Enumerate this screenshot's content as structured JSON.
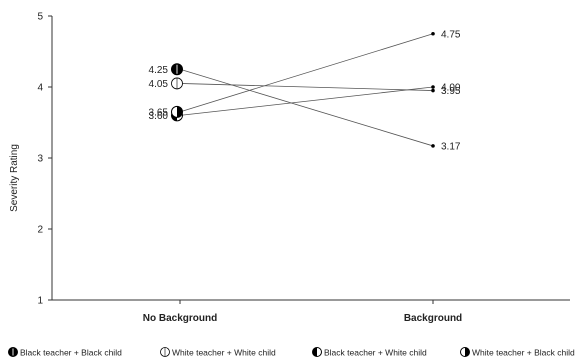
{
  "chart_data": {
    "type": "line",
    "title": "",
    "xlabel": "",
    "ylabel": "Severity Rating",
    "ylim": [
      1,
      5
    ],
    "yticks": [
      1,
      2,
      3,
      4,
      5
    ],
    "categories": [
      "No Background",
      "Background"
    ],
    "grid": false,
    "legend_position": "bottom",
    "series": [
      {
        "name": "Black teacher + Black child",
        "values": [
          4.25,
          3.17
        ],
        "labels": [
          "4.25",
          "3.17"
        ],
        "marker": "full-black"
      },
      {
        "name": "White teacher + White child",
        "values": [
          4.05,
          3.95
        ],
        "labels": [
          "4.05",
          "3.95"
        ],
        "marker": "open-white"
      },
      {
        "name": "Black teacher + White child",
        "values": [
          3.6,
          4.0
        ],
        "labels": [
          "3.60",
          "4.00"
        ],
        "marker": "left-black"
      },
      {
        "name": "White teacher + Black child",
        "values": [
          3.65,
          4.75
        ],
        "labels": [
          "3.65",
          "4.75"
        ],
        "marker": "right-black"
      }
    ]
  },
  "colors": {
    "line": "#555555",
    "axis": "#333333",
    "marker_fill": "#000000"
  }
}
